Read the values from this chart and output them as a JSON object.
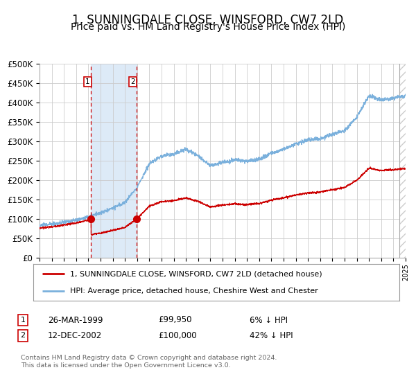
{
  "title": "1, SUNNINGDALE CLOSE, WINSFORD, CW7 2LD",
  "subtitle": "Price paid vs. HM Land Registry's House Price Index (HPI)",
  "legend_line1": "1, SUNNINGDALE CLOSE, WINSFORD, CW7 2LD (detached house)",
  "legend_line2": "HPI: Average price, detached house, Cheshire West and Chester",
  "footer": "Contains HM Land Registry data © Crown copyright and database right 2024.\nThis data is licensed under the Open Government Licence v3.0.",
  "sale1_date": "26-MAR-1999",
  "sale1_price": "£99,950",
  "sale1_hpi": "6% ↓ HPI",
  "sale2_date": "12-DEC-2002",
  "sale2_price": "£100,000",
  "sale2_hpi": "42% ↓ HPI",
  "hpi_color": "#7ab0dc",
  "sale_color": "#cc0000",
  "dot_color": "#cc0000",
  "sale1_x": 1999.23,
  "sale1_y": 99950,
  "sale2_x": 2002.95,
  "sale2_y": 100000,
  "xmin": 1995,
  "xmax": 2025,
  "ymin": 0,
  "ymax": 500000,
  "yticks": [
    0,
    50000,
    100000,
    150000,
    200000,
    250000,
    300000,
    350000,
    400000,
    450000,
    500000
  ],
  "background_color": "#ffffff",
  "grid_color": "#cccccc",
  "shade_color": "#ddeaf7",
  "hatch_color": "#cccccc",
  "title_fontsize": 12,
  "subtitle_fontsize": 10,
  "hpi_key_years": [
    1995,
    1996,
    1997,
    1998,
    1999,
    2000,
    2001,
    2002,
    2003,
    2004,
    2005,
    2006,
    2007,
    2008,
    2009,
    2010,
    2011,
    2012,
    2013,
    2014,
    2015,
    2016,
    2017,
    2018,
    2019,
    2020,
    2021,
    2022,
    2023,
    2024,
    2025
  ],
  "hpi_key_vals": [
    84000,
    87000,
    92000,
    98000,
    106000,
    116000,
    129000,
    143000,
    183000,
    242000,
    263000,
    268000,
    281000,
    264000,
    238000,
    247000,
    253000,
    249000,
    254000,
    270000,
    281000,
    294000,
    304000,
    307000,
    319000,
    329000,
    363000,
    419000,
    408000,
    412000,
    418000
  ]
}
